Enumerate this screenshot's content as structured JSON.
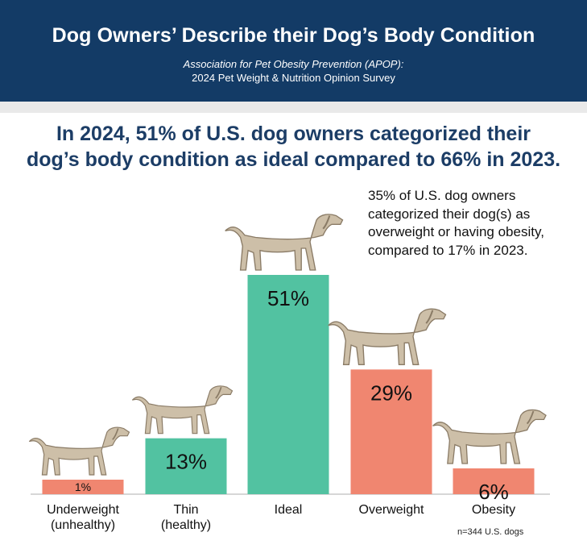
{
  "header": {
    "title": "Dog Owners’ Describe their Dog’s Body Condition",
    "subtitle_line1": "Association for Pet Obesity Prevention (APOP):",
    "subtitle_line2": "2024 Pet Weight & Nutrition Opinion Survey"
  },
  "headline": {
    "line1": "In 2024, 51% of U.S. dog owners categorized their",
    "line2": "dog’s body condition as ideal compared to 66% in 2023."
  },
  "note": "35% of U.S. dog owners categorized their dog(s) as overweight or having obesity, compared to 17% in 2023.",
  "footnote": "n=344 U.S. dogs",
  "colors": {
    "header_bg": "#133b66",
    "headline": "#1c3d66",
    "healthy": "#52c2a1",
    "unhealthy": "#f08670"
  },
  "chart_data": {
    "type": "bar",
    "categories": [
      "Underweight (unhealthy)",
      "Thin (healthy)",
      "Ideal",
      "Overweight",
      "Obesity"
    ],
    "category_lines": [
      [
        "Underweight",
        "(unhealthy)"
      ],
      [
        "Thin",
        "(healthy)"
      ],
      [
        "Ideal"
      ],
      [
        "Overweight"
      ],
      [
        "Obesity"
      ]
    ],
    "values": [
      1,
      13,
      51,
      29,
      6
    ],
    "value_labels": [
      "1%",
      "13%",
      "51%",
      "29%",
      "6%"
    ],
    "bar_colors": [
      "#f08670",
      "#52c2a1",
      "#52c2a1",
      "#f08670",
      "#f08670"
    ],
    "dog_illustrations": [
      "underweight-dog",
      "thin-dog",
      "ideal-dog",
      "overweight-dog",
      "obese-dog"
    ],
    "ylim": [
      0,
      51
    ],
    "grid": false,
    "legend": "none"
  }
}
